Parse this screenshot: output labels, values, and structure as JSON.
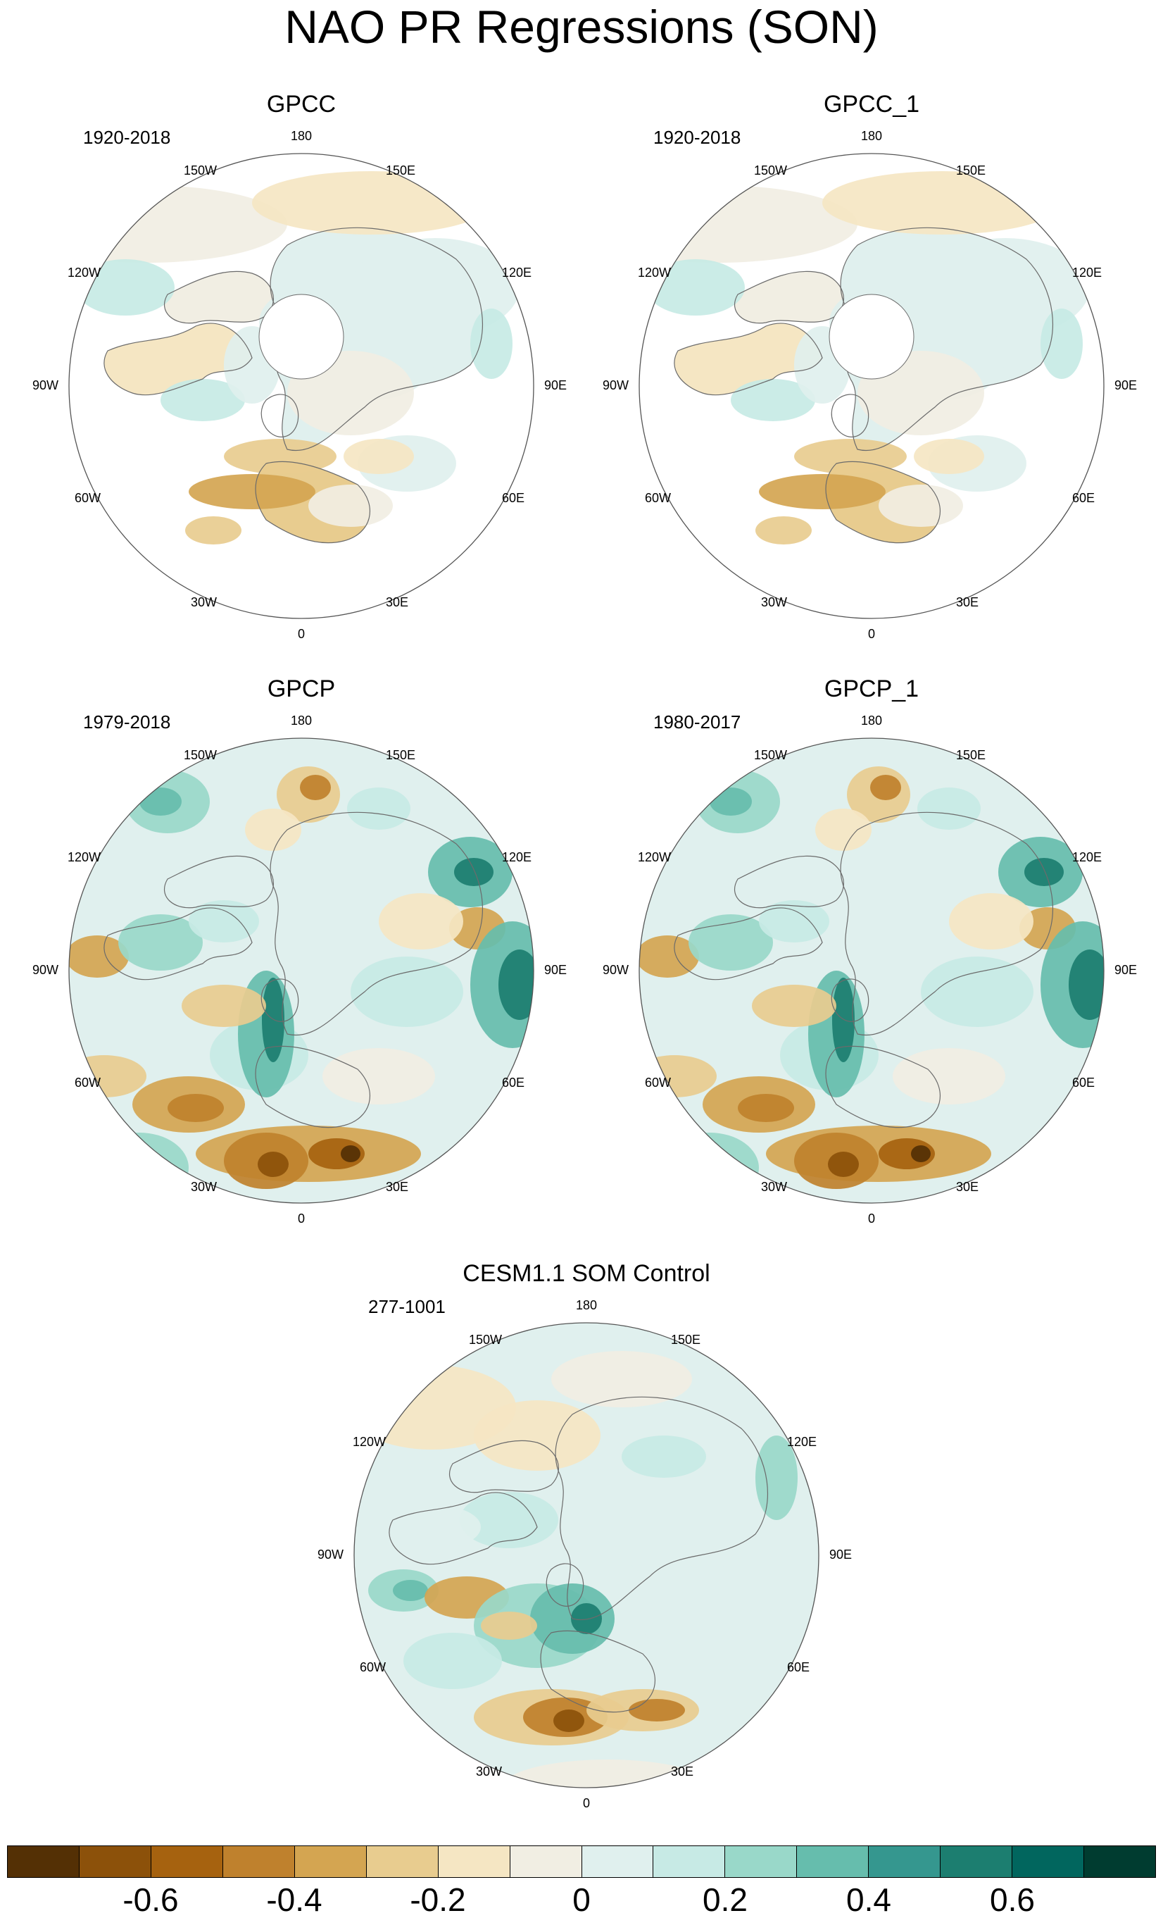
{
  "figure": {
    "title": "NAO PR Regressions (SON)"
  },
  "panels": [
    {
      "title": "GPCC",
      "years": "1920-2018",
      "type": "land"
    },
    {
      "title": "GPCC_1",
      "years": "1920-2018",
      "type": "land"
    },
    {
      "title": "GPCP",
      "years": "1979-2018",
      "type": "full"
    },
    {
      "title": "GPCP_1",
      "years": "1980-2017",
      "type": "full"
    },
    {
      "title": "CESM1.1 SOM Control",
      "years": "277-1001",
      "type": "model"
    }
  ],
  "longitude_labels": [
    "180",
    "150E",
    "120E",
    "90E",
    "60E",
    "30E",
    "0",
    "30W",
    "60W",
    "90W",
    "120W",
    "150W"
  ],
  "colorbar": {
    "colors": [
      "#543005",
      "#8c510a",
      "#a6620f",
      "#bf812d",
      "#d4a551",
      "#e8cc8f",
      "#f5e6c3",
      "#f1eee3",
      "#e0f0ee",
      "#c7eae5",
      "#99d8c9",
      "#66bdad",
      "#35978f",
      "#1c7e70",
      "#01665e",
      "#003c30"
    ],
    "tick_labels": [
      {
        "text": "-0.6",
        "value": -0.6
      },
      {
        "text": "-0.4",
        "value": -0.4
      },
      {
        "text": "-0.2",
        "value": -0.2
      },
      {
        "text": "0",
        "value": 0
      },
      {
        "text": "0.2",
        "value": 0.2
      },
      {
        "text": "0.4",
        "value": 0.4
      },
      {
        "text": "0.6",
        "value": 0.6
      }
    ],
    "range": [
      -0.8,
      0.8
    ]
  }
}
